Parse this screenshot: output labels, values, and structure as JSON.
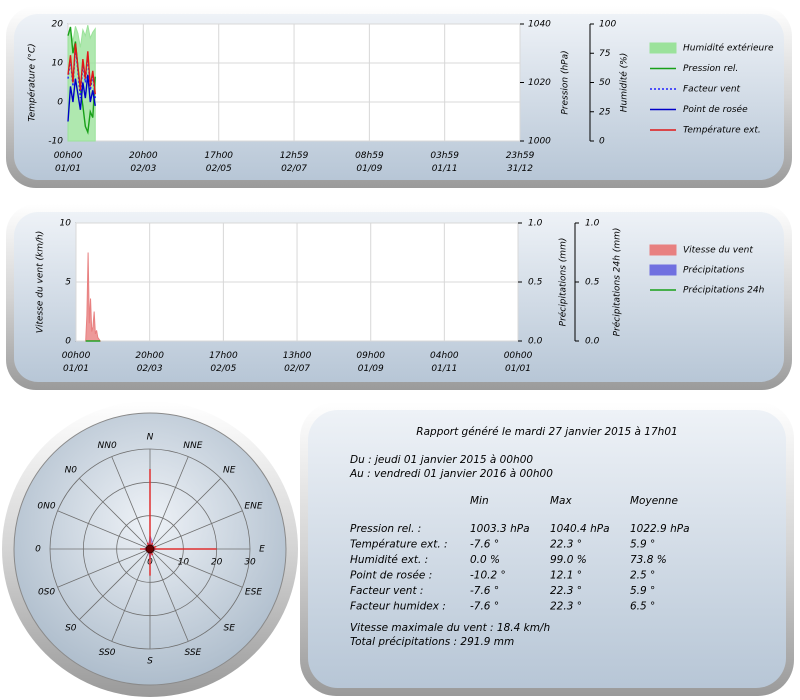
{
  "chart_data": [
    {
      "type": "line",
      "ylabel": "Température (°C)",
      "y2label": "Pression (hPa)",
      "y3label": "Humidité (%)",
      "xlim": [
        0,
        365
      ],
      "xticks": [
        {
          "value": 0,
          "label": "00h00 01/01"
        },
        {
          "value": 60.83,
          "label": "20h00 02/03"
        },
        {
          "value": 121.71,
          "label": "17h00 02/05"
        },
        {
          "value": 182.54,
          "label": "12h59 02/07"
        },
        {
          "value": 243.37,
          "label": "08h59 01/09"
        },
        {
          "value": 304.17,
          "label": "03h59 01/11"
        },
        {
          "value": 365,
          "label": "23h59 31/12"
        }
      ],
      "ylim": [
        -10,
        20
      ],
      "yticks": [
        -10,
        0,
        10,
        20
      ],
      "y2lim": [
        1000,
        1040
      ],
      "y2ticks": [
        1000,
        1020,
        1040
      ],
      "y3lim": [
        0,
        100
      ],
      "y3ticks": [
        0,
        25,
        50,
        75,
        100
      ],
      "grid": true,
      "legend": "right",
      "series": [
        {
          "name": "Humidité extérieure",
          "color": "#9be29b",
          "style": "area",
          "axis": "y3",
          "x": [
            0,
            2,
            4,
            6,
            8,
            10,
            12,
            14,
            16,
            18,
            20,
            22
          ],
          "values": [
            90,
            95,
            85,
            98,
            92,
            80,
            95,
            90,
            99,
            88,
            93,
            96
          ]
        },
        {
          "name": "Pression rel.",
          "color": "#18a018",
          "style": "line",
          "axis": "y2",
          "x": [
            0,
            2,
            4,
            6,
            8,
            10,
            12,
            14,
            16,
            18,
            20,
            22
          ],
          "values": [
            1036,
            1039,
            1030,
            1034,
            1025,
            1018,
            1012,
            1005,
            1003,
            1010,
            1008,
            1022
          ]
        },
        {
          "name": "Facteur vent",
          "color": "#2020ff",
          "style": "dotted",
          "axis": "y",
          "x": [
            0,
            2,
            4,
            6,
            8,
            10,
            12,
            14,
            16,
            18,
            20,
            22
          ],
          "values": [
            6,
            11,
            4,
            14,
            8,
            1,
            10,
            5,
            12,
            3,
            7,
            1
          ]
        },
        {
          "name": "Point de rosée",
          "color": "#0000c8",
          "style": "line",
          "axis": "y",
          "x": [
            0,
            2,
            4,
            6,
            8,
            10,
            12,
            14,
            16,
            18,
            20,
            22
          ],
          "values": [
            -5,
            4,
            0,
            6,
            2,
            -2,
            5,
            1,
            7,
            0,
            3,
            -1
          ]
        },
        {
          "name": "Température ext.",
          "color": "#e01818",
          "style": "line",
          "axis": "y",
          "x": [
            0,
            2,
            4,
            6,
            8,
            10,
            12,
            14,
            16,
            18,
            20,
            22
          ],
          "values": [
            7,
            12,
            5,
            15,
            9,
            3,
            11,
            6,
            13,
            4,
            8,
            2
          ]
        }
      ]
    },
    {
      "type": "line",
      "ylabel": "Vitesse du vent (km/h)",
      "y2label": "Précipitations (mm)",
      "y3label": "Précipitations 24h (mm)",
      "xlim": [
        0,
        365
      ],
      "xticks": [
        {
          "value": 0,
          "label": "00h00 01/01"
        },
        {
          "value": 60.83,
          "label": "20h00 02/03"
        },
        {
          "value": 121.71,
          "label": "17h00 02/05"
        },
        {
          "value": 182.54,
          "label": "13h00 02/07"
        },
        {
          "value": 243.38,
          "label": "09h00 01/09"
        },
        {
          "value": 304.17,
          "label": "04h00 01/11"
        },
        {
          "value": 365,
          "label": "00h00 01/01"
        }
      ],
      "ylim": [
        0,
        10
      ],
      "yticks": [
        0,
        5,
        10
      ],
      "y2lim": [
        0,
        1
      ],
      "y2ticks": [
        {
          "value": 0,
          "label": "0.0"
        },
        {
          "value": 0.5,
          "label": "0.5"
        },
        {
          "value": 1,
          "label": "1.0"
        }
      ],
      "y3lim": [
        0,
        1
      ],
      "y3ticks": [
        {
          "value": 0,
          "label": "0.0"
        },
        {
          "value": 0.5,
          "label": "0.5"
        },
        {
          "value": 1,
          "label": "1.0"
        }
      ],
      "grid": true,
      "legend": "right",
      "series": [
        {
          "name": "Vitesse du vent",
          "color": "#e88080",
          "style": "area",
          "axis": "y",
          "x": [
            8,
            9,
            10,
            11,
            12,
            13,
            14,
            15,
            16,
            17,
            18,
            20
          ],
          "values": [
            0,
            2.2,
            7.5,
            1.5,
            3.6,
            0.8,
            1.2,
            2.5,
            0.6,
            0.9,
            0.3,
            0
          ]
        },
        {
          "name": "Précipitations",
          "color": "#7070e0",
          "style": "bar",
          "axis": "y2",
          "x": [
            8,
            12,
            16,
            20
          ],
          "values": [
            0,
            0,
            0,
            0
          ]
        },
        {
          "name": "Précipitations 24h",
          "color": "#18a018",
          "style": "line",
          "axis": "y3",
          "x": [
            8,
            12,
            16,
            20
          ],
          "values": [
            0,
            0,
            0,
            0
          ]
        }
      ]
    },
    {
      "type": "polar",
      "categories": [
        "N",
        "NNE",
        "NE",
        "ENE",
        "E",
        "ESE",
        "SE",
        "SSE",
        "S",
        "SS0",
        "S0",
        "0S0",
        "0",
        "0N0",
        "N0",
        "NN0"
      ],
      "rlim": [
        0,
        30
      ],
      "rticks": [
        0,
        10,
        20,
        30
      ],
      "series": [
        {
          "color": "#9070d0",
          "style": "area",
          "values": [
            4,
            2,
            1,
            1,
            2,
            1,
            1,
            1,
            3,
            1,
            1,
            1,
            2,
            1,
            1,
            1
          ]
        },
        {
          "color": "#e03030",
          "style": "spoke",
          "values": [
            24,
            2,
            1,
            2,
            20,
            1,
            1,
            2,
            8,
            1,
            1,
            1,
            3,
            1,
            1,
            2
          ]
        }
      ]
    }
  ],
  "report": {
    "title": "Rapport généré le mardi 27 janvier 2015 à 17h01",
    "period": [
      "Du : jeudi 01 janvier 2015 à 00h00",
      "Au : vendredi 01 janvier 2016 à 00h00"
    ],
    "headers": [
      "Min",
      "Max",
      "Moyenne"
    ],
    "rows": [
      [
        "Pression rel. :",
        "1003.3 hPa",
        "1040.4 hPa",
        "1022.9 hPa"
      ],
      [
        "Température ext. :",
        "-7.6 °",
        "22.3 °",
        "5.9 °"
      ],
      [
        "Humidité ext. :",
        "0.0 %",
        "99.0 %",
        "73.8 %"
      ],
      [
        "Point de rosée :",
        "-10.2 °",
        "12.1 °",
        "2.5 °"
      ],
      [
        "Facteur vent :",
        "-7.6 °",
        "22.3 °",
        "5.9 °"
      ],
      [
        "Facteur humidex :",
        "-7.6 °",
        "22.3 °",
        "6.5 °"
      ]
    ],
    "footer": [
      "Vitesse maximale du vent : 18.4 km/h",
      "Total précipitations : 291.9 mm"
    ]
  }
}
